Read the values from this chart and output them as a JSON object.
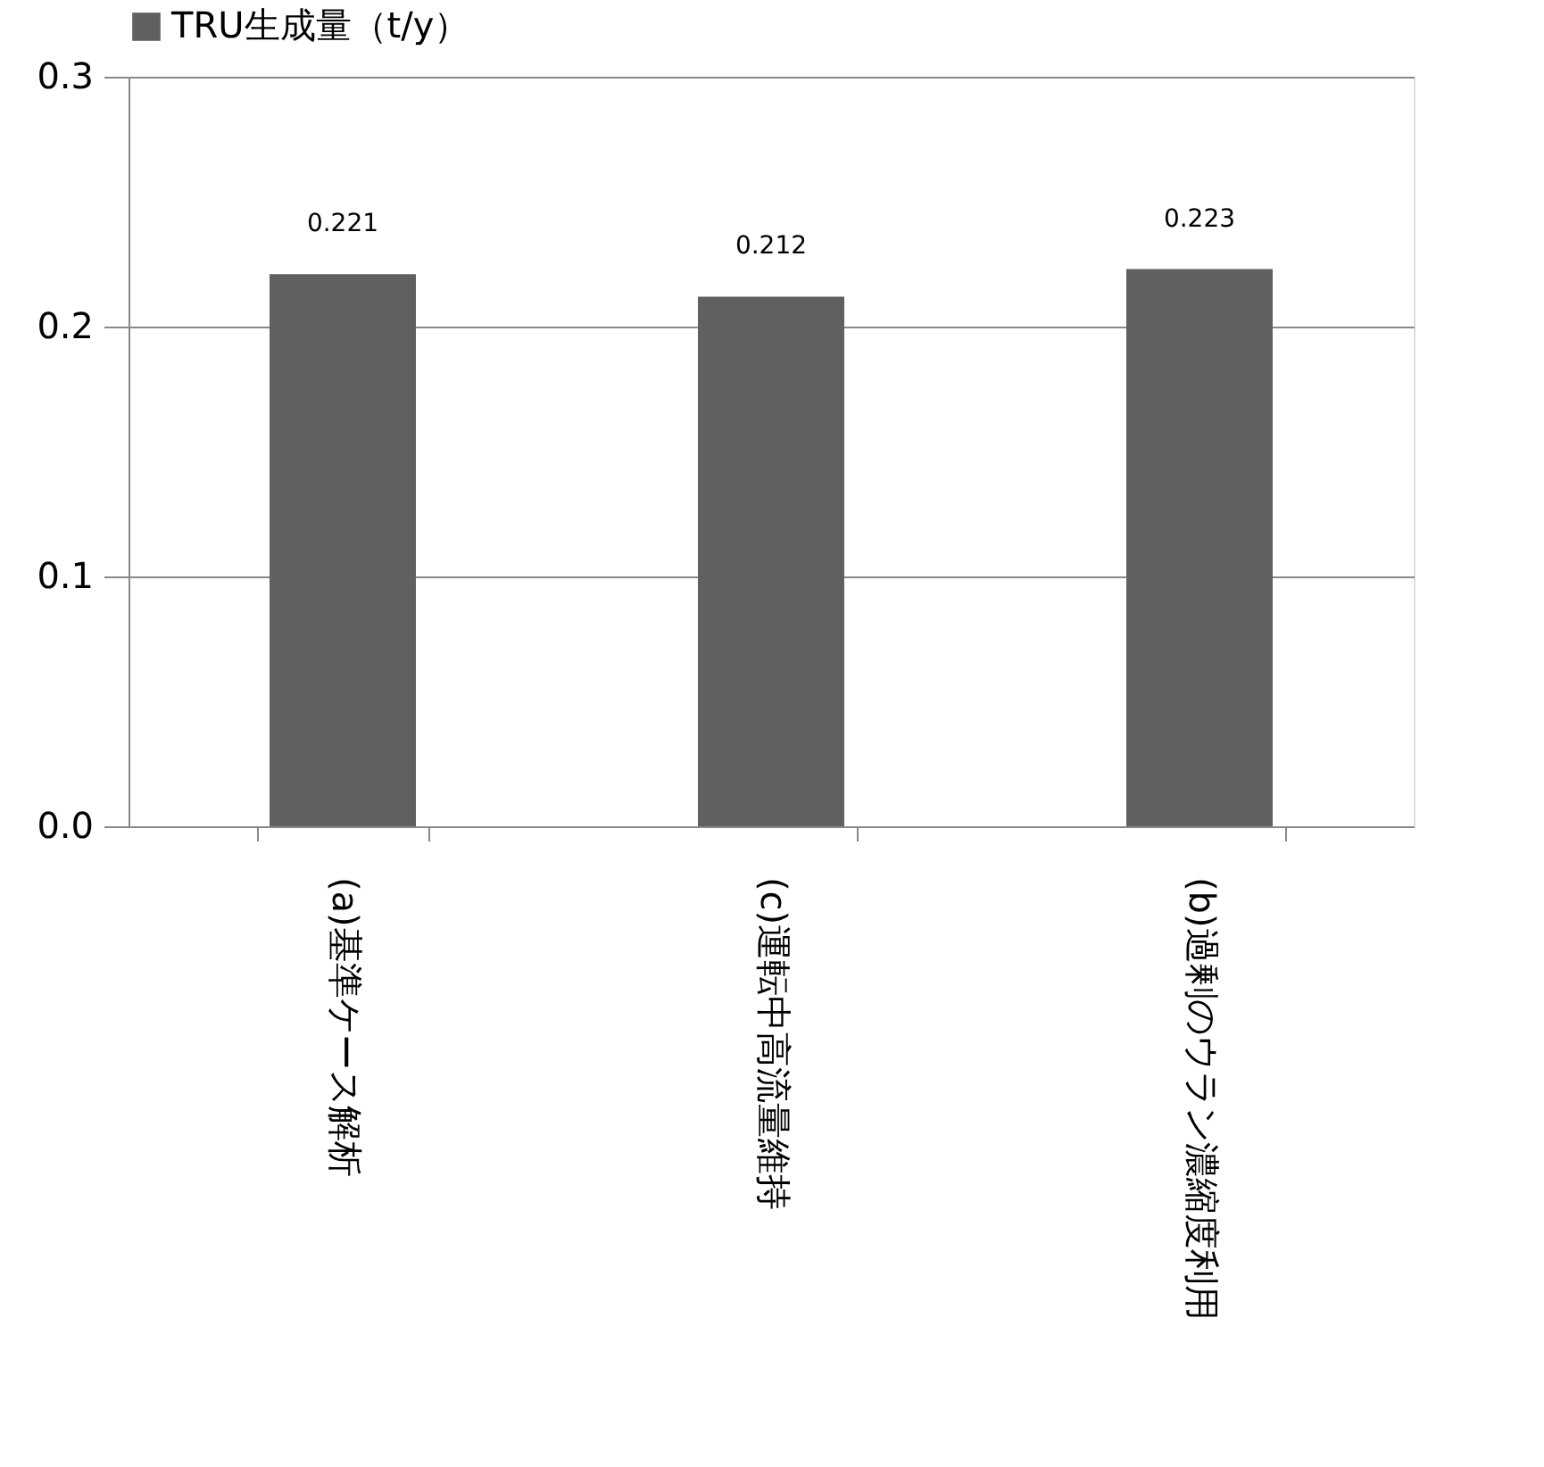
{
  "chart_data": {
    "type": "bar",
    "categories": [
      "(a)基準ケース解析",
      "(c)運転中高流量維持",
      "(b)過剰のウラン濃縮度利用"
    ],
    "series": [
      {
        "name": "TRU生成量（t/y）",
        "color": "#606060",
        "values": [
          0.221,
          0.212,
          0.223
        ]
      }
    ],
    "ylim": [
      0,
      0.3
    ],
    "yticks": [
      {
        "value": 0,
        "label": "0.0"
      },
      {
        "value": 0.1,
        "label": "0.1"
      },
      {
        "value": 0.2,
        "label": "0.2"
      },
      {
        "value": 0.3,
        "label": "0.3"
      }
    ],
    "grid": "y",
    "legend": "top",
    "data_labels": true
  }
}
